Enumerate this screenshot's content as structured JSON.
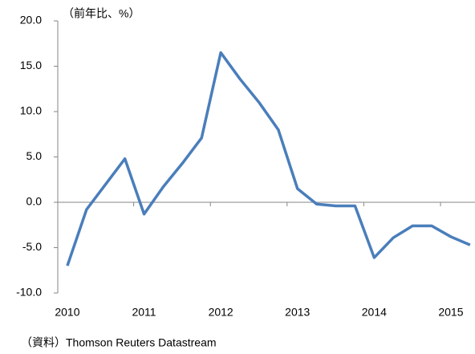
{
  "chart_data": {
    "type": "line",
    "y_label": "（前年比、%）",
    "source": "（資料）Thomson Reuters Datastream",
    "categories": [
      "2010",
      null,
      null,
      null,
      "2011",
      null,
      null,
      null,
      "2012",
      null,
      null,
      null,
      "2013",
      null,
      null,
      null,
      "2014",
      null,
      null,
      null,
      "2015",
      null
    ],
    "series": [
      {
        "name": "前年比",
        "color": "#4a7ebb",
        "values": [
          -7.0,
          -0.8,
          2.0,
          4.8,
          -1.3,
          1.7,
          4.3,
          7.1,
          16.5,
          13.6,
          11.0,
          8.0,
          1.5,
          -0.2,
          -0.4,
          -0.4,
          -6.1,
          -3.9,
          -2.6,
          -2.6,
          -3.8,
          -4.7
        ]
      }
    ],
    "ylim": [
      -10,
      20
    ],
    "yticks": [
      {
        "value": -10,
        "label": "-10.0"
      },
      {
        "value": -5,
        "label": "-5.0"
      },
      {
        "value": 0,
        "label": "0.0"
      },
      {
        "value": 5,
        "label": "5.0"
      },
      {
        "value": 10,
        "label": "10.0"
      },
      {
        "value": 15,
        "label": "15.0"
      },
      {
        "value": 20,
        "label": "20.0"
      }
    ]
  }
}
